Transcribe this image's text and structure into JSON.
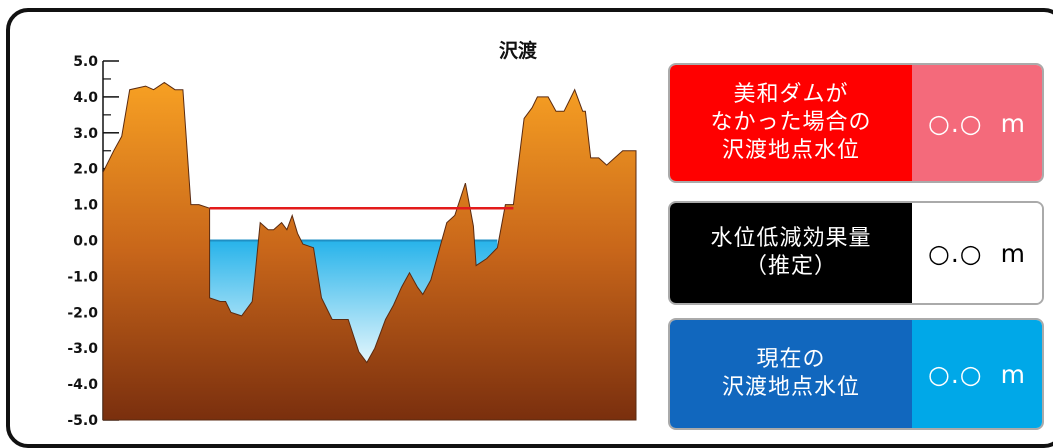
{
  "chart_data": {
    "type": "area",
    "title": "沢渡",
    "yticks": [
      "5.0",
      "4.0",
      "3.0",
      "2.0",
      "1.0",
      "0.0",
      "-1.0",
      "-2.0",
      "-3.0",
      "-4.0",
      "-5.0"
    ],
    "ylim": [
      -5.0,
      5.0
    ],
    "xlim": [
      0,
      100
    ],
    "terrain": [
      [
        0,
        1.9
      ],
      [
        2,
        2.5
      ],
      [
        3.5,
        2.9
      ],
      [
        5,
        4.2
      ],
      [
        8,
        4.3
      ],
      [
        9.5,
        4.2
      ],
      [
        10.5,
        4.3
      ],
      [
        11.5,
        4.4
      ],
      [
        12.5,
        4.3
      ],
      [
        13.5,
        4.2
      ],
      [
        15,
        4.2
      ],
      [
        16.5,
        1.0
      ],
      [
        18,
        1.0
      ],
      [
        20,
        0.9
      ],
      [
        20,
        -1.6
      ],
      [
        22,
        -1.7
      ],
      [
        23,
        -1.7
      ],
      [
        24,
        -2.0
      ],
      [
        26,
        -2.1
      ],
      [
        28,
        -1.7
      ],
      [
        28.5,
        -1.0
      ],
      [
        29.5,
        0.5
      ],
      [
        31,
        0.3
      ],
      [
        32,
        0.3
      ],
      [
        33.5,
        0.5
      ],
      [
        34.5,
        0.3
      ],
      [
        35.5,
        0.7
      ],
      [
        36.5,
        0.2
      ],
      [
        37.5,
        -0.1
      ],
      [
        39.5,
        -0.2
      ],
      [
        41,
        -1.6
      ],
      [
        43,
        -2.2
      ],
      [
        46,
        -2.2
      ],
      [
        48,
        -3.1
      ],
      [
        49.5,
        -3.4
      ],
      [
        51,
        -3.0
      ],
      [
        53,
        -2.2
      ],
      [
        54.5,
        -1.8
      ],
      [
        56,
        -1.3
      ],
      [
        57.5,
        -0.9
      ],
      [
        59,
        -1.3
      ],
      [
        60,
        -1.5
      ],
      [
        61.5,
        -1.1
      ],
      [
        63,
        -0.3
      ],
      [
        64.5,
        0.5
      ],
      [
        66,
        0.7
      ],
      [
        68,
        1.6
      ],
      [
        69.5,
        0.4
      ],
      [
        70,
        -0.7
      ],
      [
        72,
        -0.5
      ],
      [
        74,
        -0.2
      ],
      [
        75.5,
        1.0
      ],
      [
        77,
        1.0
      ],
      [
        79,
        3.4
      ],
      [
        80.5,
        3.7
      ],
      [
        81.5,
        4.0
      ],
      [
        83.5,
        4.0
      ],
      [
        85,
        3.6
      ],
      [
        86.5,
        3.6
      ],
      [
        87.5,
        3.9
      ],
      [
        88.5,
        4.2
      ],
      [
        90,
        3.6
      ],
      [
        90.5,
        3.6
      ],
      [
        91.5,
        2.3
      ],
      [
        93,
        2.3
      ],
      [
        94.5,
        2.1
      ],
      [
        96,
        2.3
      ],
      [
        97.5,
        2.5
      ],
      [
        100,
        2.5
      ],
      [
        100,
        1.5
      ]
    ],
    "water_level": 0.0,
    "water_x": [
      20,
      74
    ],
    "no_dam_level": 0.9,
    "no_dam_x": [
      20,
      77
    ]
  },
  "cards": [
    {
      "label": "美和ダムが\nなかった場合の\n沢渡地点水位",
      "value": "○.○",
      "unit": "m",
      "label_color": "#ff0000",
      "value_color": "#f46a7b",
      "value_text_color": "#ffffff"
    },
    {
      "label": "水位低減効果量\n（推定）",
      "value": "○.○",
      "unit": "m",
      "label_color": "#000000",
      "value_color": "#ffffff",
      "value_text_color": "#000000"
    },
    {
      "label": "現在の\n沢渡地点水位",
      "value": "○.○",
      "unit": "m",
      "label_color": "#1167be",
      "value_color": "#00a8e8",
      "value_text_color": "#ffffff"
    }
  ]
}
